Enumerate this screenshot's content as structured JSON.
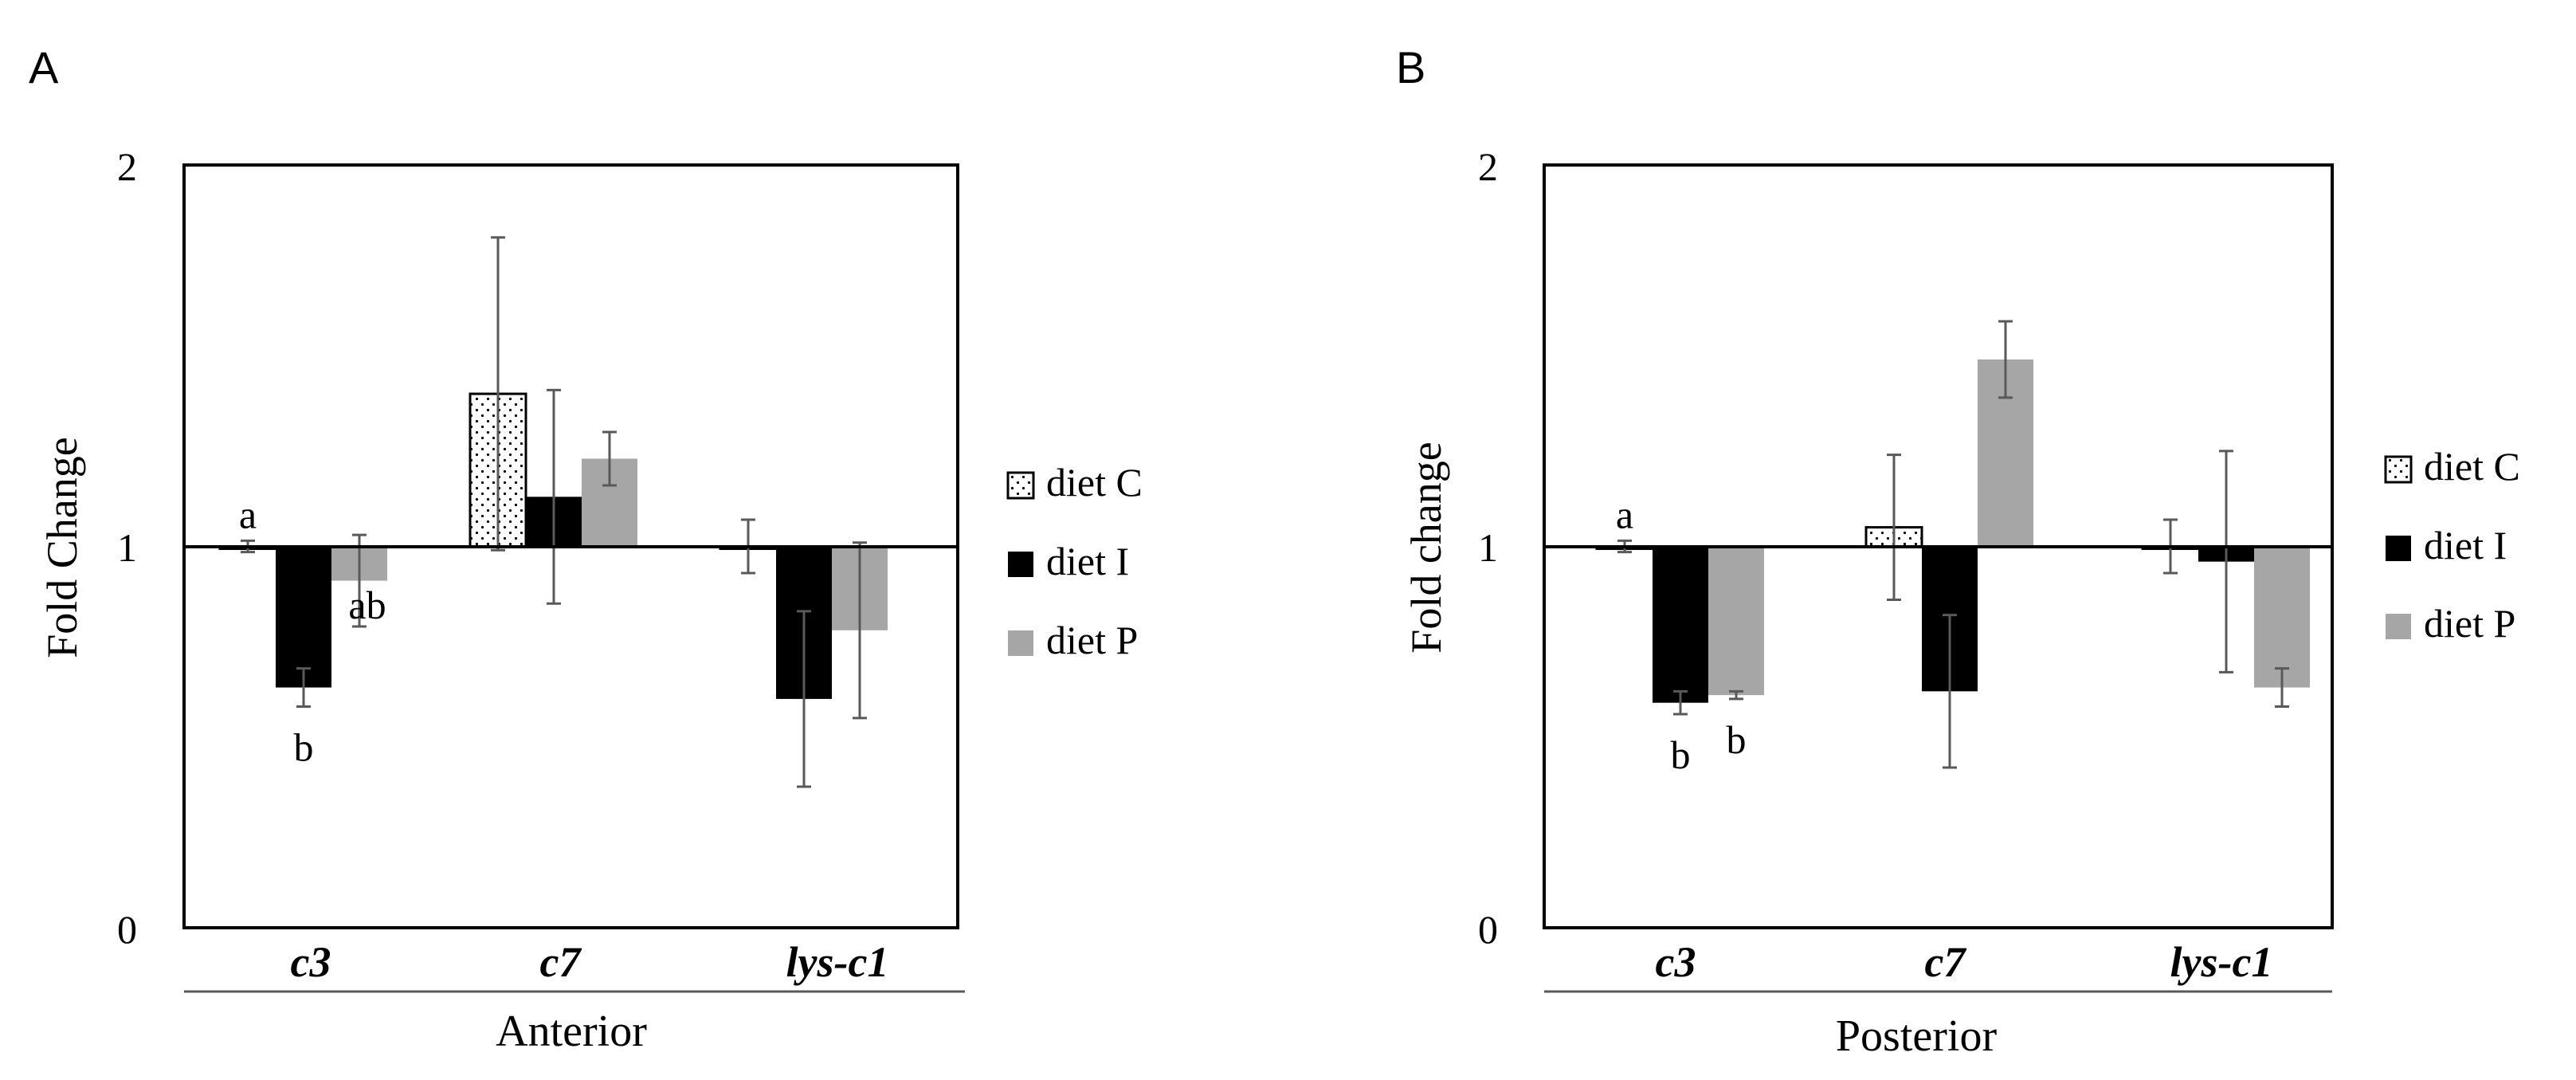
{
  "colors": {
    "diet_c_fill": "#ffffff",
    "diet_c_dots": "#000000",
    "diet_i": "#000000",
    "diet_p": "#a6a6a6",
    "error_bar": "#595959",
    "axis": "#000000"
  },
  "legend": [
    "diet C",
    "diet I",
    "diet P"
  ],
  "chart_data": [
    {
      "panel_label": "A",
      "type": "bar",
      "title": "",
      "ylabel": "Fold Change",
      "xlabel": "Anterior",
      "ylim": [
        0,
        2
      ],
      "yticks": [
        "0",
        "1",
        "2"
      ],
      "baseline": 1,
      "categories": [
        "c3",
        "c7",
        "lys-c1"
      ],
      "series": [
        {
          "name": "diet C",
          "values": [
            1.0,
            1.4,
            1.0
          ],
          "errors": [
            0.015,
            0.41,
            0.07
          ]
        },
        {
          "name": "diet I",
          "values": [
            0.63,
            1.13,
            0.6
          ],
          "errors": [
            0.05,
            0.28,
            0.23
          ]
        },
        {
          "name": "diet P",
          "values": [
            0.91,
            1.23,
            0.78
          ],
          "errors": [
            0.12,
            0.07,
            0.23
          ]
        }
      ],
      "annotations": [
        {
          "text": "a",
          "category": 0,
          "series": 0,
          "pos": "above"
        },
        {
          "text": "b",
          "category": 0,
          "series": 1,
          "pos": "below"
        },
        {
          "text": "ab",
          "category": 0,
          "series": 2,
          "pos": "below"
        }
      ]
    },
    {
      "panel_label": "B",
      "type": "bar",
      "title": "",
      "ylabel": "Fold change",
      "xlabel": "Posterior",
      "ylim": [
        0,
        2
      ],
      "yticks": [
        "0",
        "1",
        "2"
      ],
      "baseline": 1,
      "categories": [
        "c3",
        "c7",
        "lys-c1"
      ],
      "series": [
        {
          "name": "diet C",
          "values": [
            1.0,
            1.05,
            1.0
          ],
          "errors": [
            0.015,
            0.19,
            0.07
          ]
        },
        {
          "name": "diet I",
          "values": [
            0.59,
            0.62,
            0.96
          ],
          "errors": [
            0.03,
            0.2,
            0.29
          ]
        },
        {
          "name": "diet P",
          "values": [
            0.61,
            1.49,
            0.63
          ],
          "errors": [
            0.01,
            0.1,
            0.05
          ]
        }
      ],
      "annotations": [
        {
          "text": "a",
          "category": 0,
          "series": 0,
          "pos": "above"
        },
        {
          "text": "b",
          "category": 0,
          "series": 1,
          "pos": "below"
        },
        {
          "text": "b",
          "category": 0,
          "series": 2,
          "pos": "below"
        }
      ]
    }
  ]
}
